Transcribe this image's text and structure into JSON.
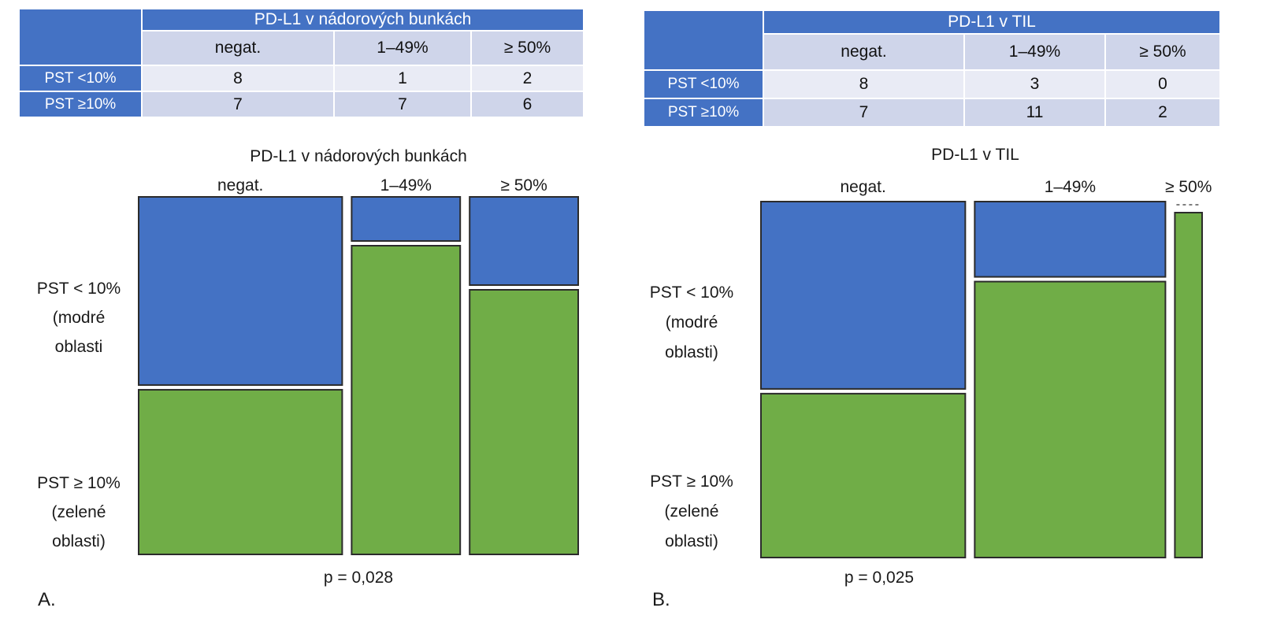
{
  "colors": {
    "blue": "#4472c4",
    "green": "#70ad47",
    "header": "#4472c4",
    "subheader": "#cfd5ea",
    "cell_light": "#e9ebf5",
    "cell_dark": "#cfd5ea"
  },
  "panels": [
    {
      "letter": "A.",
      "table": {
        "title": "PD-L1 v nádorových bunkách",
        "columns": [
          "negat.",
          "1–49%",
          "≥ 50%"
        ],
        "rows": [
          {
            "label": "PST <10%",
            "values": [
              "8",
              "1",
              "2"
            ]
          },
          {
            "label": "PST ≥10%",
            "values": [
              "7",
              "7",
              "6"
            ]
          }
        ]
      },
      "mosaic": {
        "title": "PD-L1 v nádorových bunkách",
        "columns": [
          "negat.",
          "1–49%",
          "≥ 50%"
        ],
        "row_label_top": [
          "PST < 10%",
          "(modré",
          "oblasti"
        ],
        "row_label_bottom": [
          "PST ≥ 10%",
          "(zelené",
          "oblasti)"
        ],
        "p_value": "p = 0,028"
      }
    },
    {
      "letter": "B.",
      "table": {
        "title": "PD-L1 v TIL",
        "columns": [
          "negat.",
          "1–49%",
          "≥ 50%"
        ],
        "rows": [
          {
            "label": "PST <10%",
            "values": [
              "8",
              "3",
              "0"
            ]
          },
          {
            "label": "PST ≥10%",
            "values": [
              "7",
              "11",
              "2"
            ]
          }
        ]
      },
      "mosaic": {
        "title": "PD-L1 v TIL",
        "columns": [
          "negat.",
          "1–49%",
          "≥ 50%"
        ],
        "row_label_top": [
          "PST < 10%",
          "(modré",
          "oblasti)"
        ],
        "row_label_bottom": [
          "PST ≥ 10%",
          "(zelené",
          "oblasti)"
        ],
        "p_value": "p = 0,025"
      }
    }
  ],
  "chart_data": [
    {
      "type": "mosaic",
      "title": "PD-L1 v nádorových bunkách",
      "categories": [
        "negat.",
        "1–49%",
        "≥ 50%"
      ],
      "series": [
        {
          "name": "PST < 10%",
          "values": [
            8,
            1,
            2
          ]
        },
        {
          "name": "PST ≥ 10%",
          "values": [
            7,
            7,
            6
          ]
        }
      ],
      "annotation": "p = 0,028"
    },
    {
      "type": "mosaic",
      "title": "PD-L1 v TIL",
      "categories": [
        "negat.",
        "1–49%",
        "≥ 50%"
      ],
      "series": [
        {
          "name": "PST < 10%",
          "values": [
            8,
            3,
            0
          ]
        },
        {
          "name": "PST ≥ 10%",
          "values": [
            7,
            11,
            2
          ]
        }
      ],
      "annotation": "p = 0,025"
    }
  ]
}
